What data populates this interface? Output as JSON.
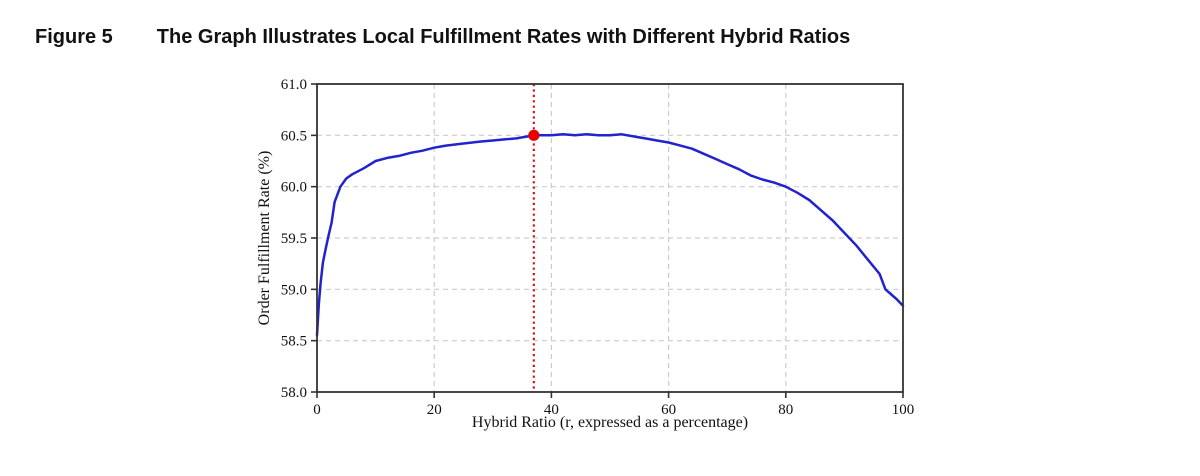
{
  "header": {
    "figure_label": "Figure 5",
    "figure_title": "The Graph Illustrates Local Fulfillment Rates with Different Hybrid Ratios"
  },
  "chart_data": {
    "type": "line",
    "title": "",
    "xlabel": "Hybrid Ratio (r, expressed as a percentage)",
    "ylabel": "Order Fulfillment Rate (%)",
    "xlim": [
      0,
      100
    ],
    "ylim": [
      58.0,
      61.0
    ],
    "x_ticks": [
      0,
      20,
      40,
      60,
      80,
      100
    ],
    "y_ticks": [
      58.0,
      58.5,
      59.0,
      59.5,
      60.0,
      60.5,
      61.0
    ],
    "grid": true,
    "grid_color": "#cccccc",
    "spine_color": "#333333",
    "legend": "none",
    "series": [
      {
        "name": "Local Fulfillment Rate",
        "color": "#2323cd",
        "x": [
          0,
          0.3,
          0.6,
          1,
          1.5,
          2,
          2.5,
          3,
          4,
          5,
          6,
          7,
          8,
          10,
          12,
          14,
          16,
          18,
          20,
          22,
          25,
          28,
          30,
          32,
          34,
          36,
          37,
          38,
          40,
          42,
          44,
          46,
          48,
          50,
          52,
          54,
          56,
          58,
          60,
          62,
          64,
          66,
          68,
          70,
          72,
          74,
          76,
          78,
          80,
          82,
          84,
          86,
          88,
          90,
          92,
          94,
          96,
          97,
          98,
          99,
          100
        ],
        "y": [
          58.55,
          58.85,
          59.05,
          59.26,
          59.4,
          59.53,
          59.65,
          59.85,
          60.0,
          60.08,
          60.12,
          60.15,
          60.18,
          60.25,
          60.28,
          60.3,
          60.33,
          60.35,
          60.38,
          60.4,
          60.42,
          60.44,
          60.45,
          60.46,
          60.47,
          60.49,
          60.5,
          60.5,
          60.5,
          60.51,
          60.5,
          60.51,
          60.5,
          60.5,
          60.51,
          60.49,
          60.47,
          60.45,
          60.43,
          60.4,
          60.37,
          60.32,
          60.27,
          60.22,
          60.17,
          60.11,
          60.07,
          60.04,
          60.0,
          59.94,
          59.87,
          59.77,
          59.67,
          59.55,
          59.43,
          59.29,
          59.15,
          59.0,
          58.95,
          58.9,
          58.84
        ]
      }
    ],
    "annotations": {
      "optimal_vline": {
        "x": 37,
        "color": "#e60000",
        "style": "dotted"
      },
      "peak_marker": {
        "x": 37,
        "y": 60.5,
        "color": "#e60000"
      }
    }
  }
}
